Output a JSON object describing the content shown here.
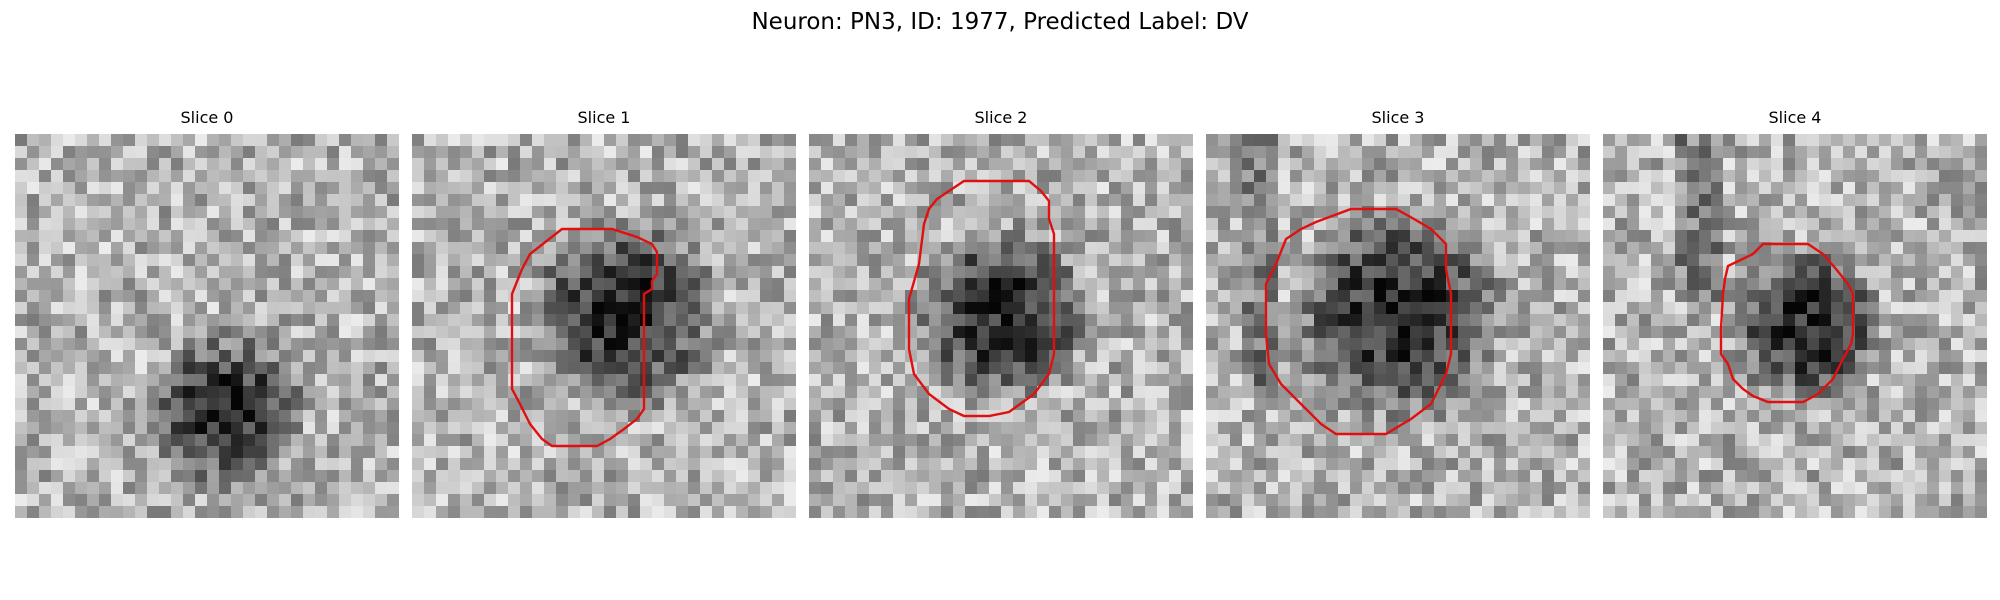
{
  "figure": {
    "title": "Neuron: PN3, ID: 1977, Predicted Label: DV"
  },
  "panels": [
    {
      "title": "Slice 0",
      "has_contour": false,
      "dark_blob": [
        0.55,
        0.72,
        0.22
      ]
    },
    {
      "title": "Slice 1",
      "has_contour": true,
      "dark_blob": [
        0.55,
        0.47,
        0.27
      ]
    },
    {
      "title": "Slice 2",
      "has_contour": true,
      "dark_blob": [
        0.5,
        0.47,
        0.25
      ]
    },
    {
      "title": "Slice 3",
      "has_contour": true,
      "dark_blob": [
        0.5,
        0.47,
        0.3
      ]
    },
    {
      "title": "Slice 4",
      "has_contour": true,
      "dark_blob": [
        0.53,
        0.5,
        0.22
      ]
    }
  ],
  "colors": {
    "contour": "#e01010",
    "background": "#ffffff"
  }
}
